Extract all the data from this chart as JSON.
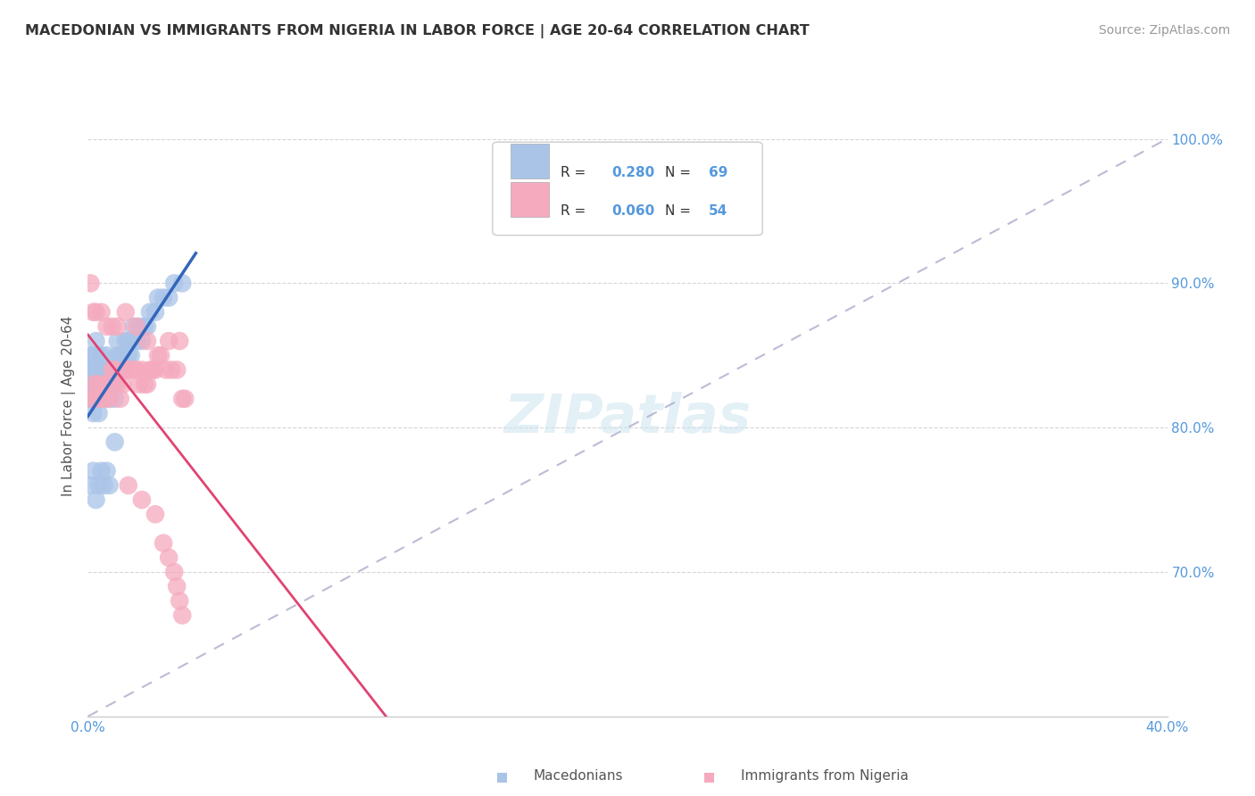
{
  "title": "MACEDONIAN VS IMMIGRANTS FROM NIGERIA IN LABOR FORCE | AGE 20-64 CORRELATION CHART",
  "source": "Source: ZipAtlas.com",
  "ylabel": "In Labor Force | Age 20-64",
  "xlim": [
    0.0,
    0.4
  ],
  "ylim": [
    0.6,
    1.03
  ],
  "yticks": [
    0.7,
    0.8,
    0.9,
    1.0
  ],
  "ytick_labels": [
    "70.0%",
    "80.0%",
    "90.0%",
    "100.0%"
  ],
  "xtick_left_label": "0.0%",
  "xtick_right_label": "40.0%",
  "macedonian_R": 0.28,
  "macedonian_N": 69,
  "nigeria_R": 0.06,
  "nigeria_N": 54,
  "macedonian_color": "#aac4e8",
  "nigeria_color": "#f5aabe",
  "macedonian_line_color": "#3366bb",
  "nigeria_line_color": "#e04472",
  "trend_line_color": "#aaaacc",
  "tick_color": "#5599dd",
  "background_color": "#ffffff",
  "macedonian_x": [
    0.001,
    0.001,
    0.001,
    0.001,
    0.002,
    0.002,
    0.002,
    0.002,
    0.002,
    0.003,
    0.003,
    0.003,
    0.003,
    0.003,
    0.004,
    0.004,
    0.004,
    0.004,
    0.005,
    0.005,
    0.005,
    0.005,
    0.006,
    0.006,
    0.006,
    0.007,
    0.007,
    0.007,
    0.008,
    0.008,
    0.008,
    0.009,
    0.009,
    0.01,
    0.01,
    0.01,
    0.011,
    0.011,
    0.012,
    0.012,
    0.013,
    0.013,
    0.014,
    0.015,
    0.015,
    0.016,
    0.016,
    0.017,
    0.018,
    0.019,
    0.02,
    0.021,
    0.022,
    0.023,
    0.025,
    0.026,
    0.028,
    0.03,
    0.032,
    0.035,
    0.001,
    0.002,
    0.003,
    0.004,
    0.005,
    0.006,
    0.007,
    0.008,
    0.01
  ],
  "macedonian_y": [
    0.82,
    0.83,
    0.84,
    0.85,
    0.81,
    0.82,
    0.83,
    0.84,
    0.85,
    0.82,
    0.83,
    0.84,
    0.85,
    0.86,
    0.81,
    0.82,
    0.83,
    0.84,
    0.82,
    0.83,
    0.84,
    0.85,
    0.82,
    0.83,
    0.84,
    0.83,
    0.84,
    0.85,
    0.82,
    0.83,
    0.84,
    0.83,
    0.84,
    0.82,
    0.83,
    0.84,
    0.85,
    0.86,
    0.84,
    0.85,
    0.84,
    0.85,
    0.86,
    0.85,
    0.86,
    0.85,
    0.86,
    0.87,
    0.86,
    0.87,
    0.86,
    0.87,
    0.87,
    0.88,
    0.88,
    0.89,
    0.89,
    0.89,
    0.9,
    0.9,
    0.76,
    0.77,
    0.75,
    0.76,
    0.77,
    0.76,
    0.77,
    0.76,
    0.79
  ],
  "nigeria_x": [
    0.001,
    0.002,
    0.003,
    0.004,
    0.005,
    0.005,
    0.006,
    0.007,
    0.008,
    0.009,
    0.01,
    0.011,
    0.012,
    0.013,
    0.014,
    0.015,
    0.016,
    0.017,
    0.018,
    0.019,
    0.02,
    0.021,
    0.022,
    0.023,
    0.024,
    0.025,
    0.027,
    0.029,
    0.031,
    0.033,
    0.035,
    0.036,
    0.001,
    0.002,
    0.003,
    0.005,
    0.007,
    0.009,
    0.011,
    0.014,
    0.018,
    0.022,
    0.026,
    0.03,
    0.034,
    0.015,
    0.02,
    0.025,
    0.028,
    0.03,
    0.032,
    0.033,
    0.034,
    0.035
  ],
  "nigeria_y": [
    0.82,
    0.83,
    0.82,
    0.83,
    0.82,
    0.83,
    0.82,
    0.83,
    0.82,
    0.84,
    0.84,
    0.83,
    0.82,
    0.83,
    0.84,
    0.84,
    0.84,
    0.84,
    0.84,
    0.83,
    0.84,
    0.83,
    0.83,
    0.84,
    0.84,
    0.84,
    0.85,
    0.84,
    0.84,
    0.84,
    0.82,
    0.82,
    0.9,
    0.88,
    0.88,
    0.88,
    0.87,
    0.87,
    0.87,
    0.88,
    0.87,
    0.86,
    0.85,
    0.86,
    0.86,
    0.76,
    0.75,
    0.74,
    0.72,
    0.71,
    0.7,
    0.69,
    0.68,
    0.67
  ]
}
